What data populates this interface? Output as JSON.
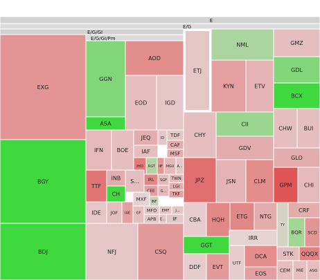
{
  "chart_data": {
    "type": "treemap",
    "title": "",
    "color_scale": {
      "negative": "#e05555",
      "neutral": "#e6d2d2",
      "positive": "#3fd93f"
    },
    "headers": [
      "E",
      "E/G",
      "E/G/GI",
      "E/G/GI/Pm"
    ],
    "tiles": [
      {
        "label": "EXG",
        "change": -0.5
      },
      {
        "label": "BGY",
        "change": 1.0
      },
      {
        "label": "BDJ",
        "change": 1.0
      },
      {
        "label": "GGN",
        "change": 0.6
      },
      {
        "label": "ASA",
        "change": 1.0
      },
      {
        "label": "AOD",
        "change": -0.55
      },
      {
        "label": "EOD",
        "change": -0.15
      },
      {
        "label": "IGD",
        "change": -0.1
      },
      {
        "label": "IFN",
        "change": -0.2
      },
      {
        "label": "BOE",
        "change": -0.15
      },
      {
        "label": "JEQ",
        "change": -0.3
      },
      {
        "label": "ID",
        "change": -0.1
      },
      {
        "label": "TDF",
        "change": -0.1
      },
      {
        "label": "IAF",
        "change": -0.15
      },
      {
        "label": "CAF",
        "change": -0.3
      },
      {
        "label": "MSF",
        "change": -0.3
      },
      {
        "label": "IHD",
        "change": -0.7
      },
      {
        "label": "RGT",
        "change": 0.3
      },
      {
        "label": "IIF",
        "change": -0.5
      },
      {
        "label": "MGU",
        "change": -0.2
      },
      {
        "label": "A...",
        "change": -0.1
      },
      {
        "label": "TTF",
        "change": -0.75
      },
      {
        "label": "INB",
        "change": -0.3
      },
      {
        "label": "CH",
        "change": 1.0
      },
      {
        "label": "S...",
        "change": -0.15
      },
      {
        "label": "IRL",
        "change": -0.6
      },
      {
        "label": "SGF",
        "change": -0.2
      },
      {
        "label": "TWN",
        "change": -0.2
      },
      {
        "label": "CEE",
        "change": -0.4
      },
      {
        "label": "G...",
        "change": -0.2
      },
      {
        "label": "LGI",
        "change": -0.3
      },
      {
        "label": "TKF",
        "change": -0.4
      },
      {
        "label": "IDE",
        "change": -0.1
      },
      {
        "label": "JOF",
        "change": -0.15
      },
      {
        "label": "IAE",
        "change": -0.4
      },
      {
        "label": "GF",
        "change": -0.15
      },
      {
        "label": "MXF",
        "change": 0.0
      },
      {
        "label": "INF",
        "change": 0.2
      },
      {
        "label": "MFD",
        "change": -0.1
      },
      {
        "label": "EMF",
        "change": -0.1
      },
      {
        "label": "J...",
        "change": -0.1
      },
      {
        "label": "APB",
        "change": -0.1
      },
      {
        "label": "E...",
        "change": -0.1
      },
      {
        "label": "IF",
        "change": -0.1
      },
      {
        "label": "NFJ",
        "change": -0.1
      },
      {
        "label": "CSQ",
        "change": -0.45
      },
      {
        "label": "ETJ",
        "change": -0.1
      },
      {
        "label": "NML",
        "change": 0.35
      },
      {
        "label": "GMZ",
        "change": -0.15
      },
      {
        "label": "KYN",
        "change": -0.4
      },
      {
        "label": "ETV",
        "change": -0.25
      },
      {
        "label": "GDL",
        "change": 0.6
      },
      {
        "label": "BCX",
        "change": 1.0
      },
      {
        "label": "CHY",
        "change": -0.15
      },
      {
        "label": "CII",
        "change": 0.45
      },
      {
        "label": "CHW",
        "change": -0.15
      },
      {
        "label": "BUI",
        "change": -0.15
      },
      {
        "label": "GDV",
        "change": -0.3
      },
      {
        "label": "GLO",
        "change": -0.3
      },
      {
        "label": "JPZ",
        "change": -0.8
      },
      {
        "label": "JSN",
        "change": -0.25
      },
      {
        "label": "CLM",
        "change": -0.55
      },
      {
        "label": "GPM",
        "change": -1.0
      },
      {
        "label": "CHI",
        "change": -0.2
      },
      {
        "label": "CBA",
        "change": -0.05
      },
      {
        "label": "HQH",
        "change": -0.6
      },
      {
        "label": "ETG",
        "change": -0.6
      },
      {
        "label": "NTG",
        "change": -0.3
      },
      {
        "label": "TY",
        "change": 0.1
      },
      {
        "label": "CRF",
        "change": -0.3
      },
      {
        "label": "BQR",
        "change": 0.4
      },
      {
        "label": "SCD",
        "change": -0.5
      },
      {
        "label": "GGT",
        "change": 1.0
      },
      {
        "label": "IRR",
        "change": 0.0
      },
      {
        "label": "QQQX",
        "change": -0.65
      },
      {
        "label": "DDF",
        "change": -0.05
      },
      {
        "label": "EVT",
        "change": -0.45
      },
      {
        "label": "UTF",
        "change": -0.05
      },
      {
        "label": "DCA",
        "change": -0.55
      },
      {
        "label": "STK",
        "change": -0.15
      },
      {
        "label": "EOS",
        "change": -0.4
      },
      {
        "label": "CEM",
        "change": -0.15
      },
      {
        "label": "MIE",
        "change": -0.15
      },
      {
        "label": "ASG",
        "change": -0.15
      }
    ]
  }
}
